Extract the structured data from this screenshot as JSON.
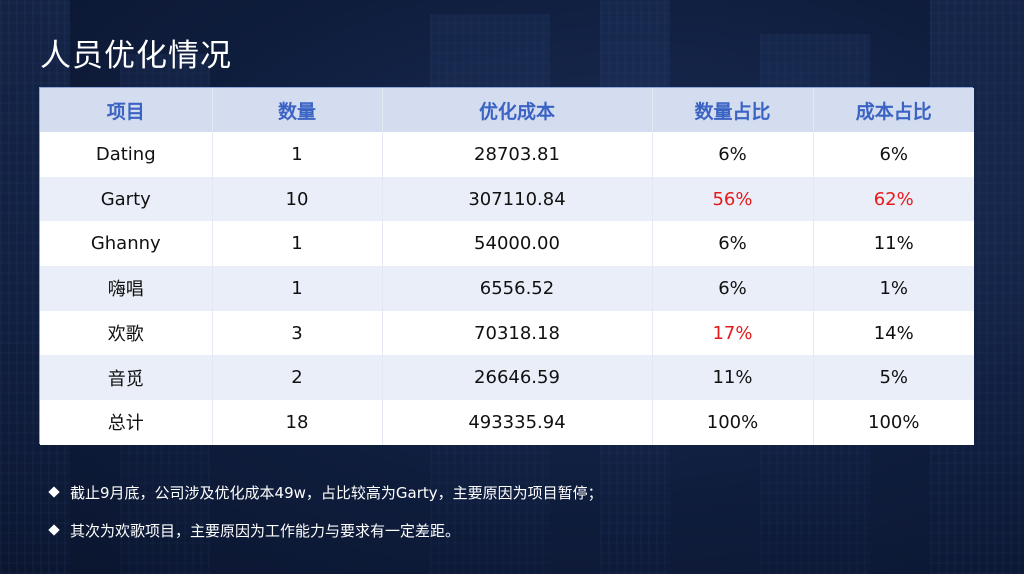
{
  "title": "人员优化情况",
  "table": {
    "headers": [
      "项目",
      "数量",
      "优化成本",
      "数量占比",
      "成本占比"
    ],
    "rows": [
      [
        "Dating",
        "1",
        "28703.81",
        "6%",
        "6%"
      ],
      [
        "Garty",
        "10",
        "307110.84",
        "56%",
        "62%"
      ],
      [
        "Ghanny",
        "1",
        "54000.00",
        "6%",
        "11%"
      ],
      [
        "嗨唱",
        "1",
        "6556.52",
        "6%",
        "1%"
      ],
      [
        "欢歌",
        "3",
        "70318.18",
        "17%",
        "14%"
      ],
      [
        "音觅",
        "2",
        "26646.59",
        "11%",
        "5%"
      ],
      [
        "总计",
        "18",
        "493335.94",
        "100%",
        "100%"
      ]
    ],
    "highlight_color": "#e51a1a"
  },
  "notes": [
    "截止9月底，公司涉及优化成本49w，占比较高为Garty，主要原因为项目暂停；",
    "其次为欢歌项目，主要原因为工作能力与要求有一定差距。"
  ]
}
